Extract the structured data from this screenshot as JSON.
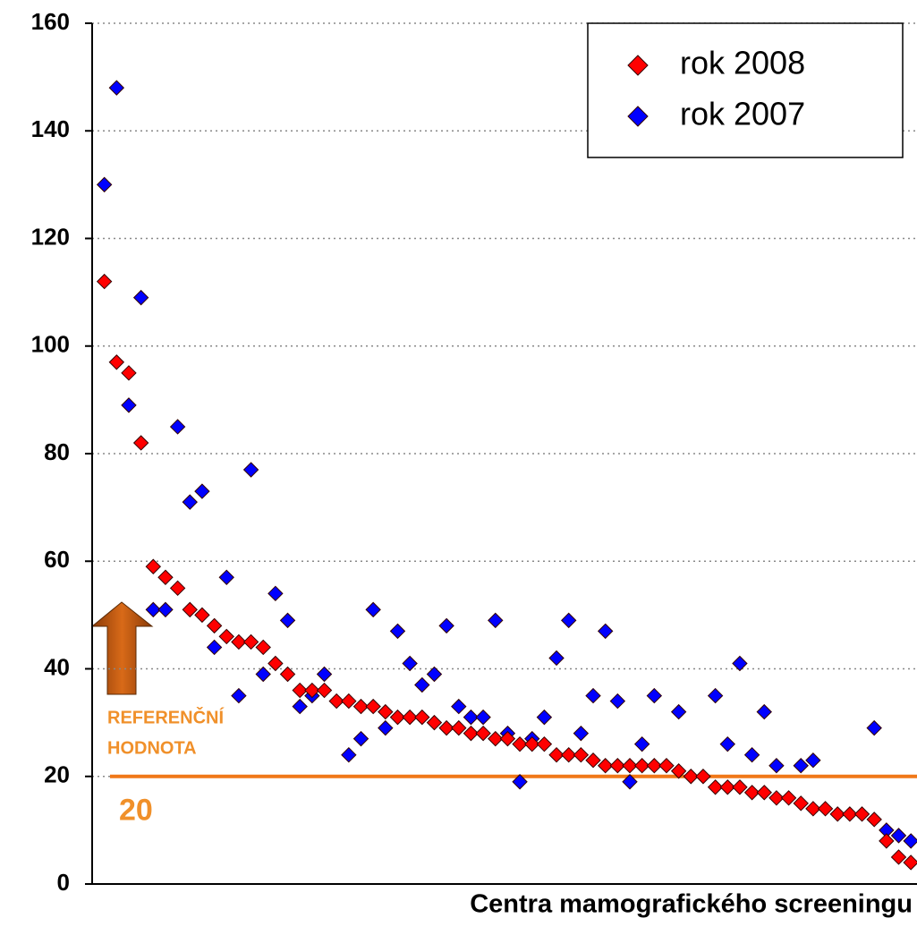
{
  "chart_data": {
    "type": "scatter",
    "xlabel": "Centra mamografického screeningu",
    "xlim": [
      0,
      67.5
    ],
    "ylim": [
      0,
      160
    ],
    "yticks": [
      0,
      20,
      40,
      60,
      80,
      100,
      120,
      140,
      160
    ],
    "grid": true,
    "legend": "upper right",
    "reference_value": 20,
    "reference_color": "#f07818",
    "annotation": [
      "REFERENČNÍ",
      "HODNOTA"
    ],
    "series": [
      {
        "name": "rok 2008",
        "color": "#ff0000",
        "x": [
          1,
          2,
          3,
          4,
          5,
          6,
          7,
          8,
          9,
          10,
          11,
          12,
          13,
          14,
          15,
          16,
          17,
          18,
          19,
          20,
          21,
          22,
          23,
          24,
          25,
          26,
          27,
          28,
          29,
          30,
          31,
          32,
          33,
          34,
          35,
          36,
          37,
          38,
          39,
          40,
          41,
          42,
          43,
          44,
          45,
          46,
          47,
          48,
          49,
          50,
          51,
          52,
          53,
          54,
          55,
          56,
          57,
          58,
          59,
          60,
          61,
          62,
          63,
          64,
          65,
          66,
          67
        ],
        "values": [
          112,
          97,
          95,
          82,
          59,
          57,
          55,
          51,
          50,
          48,
          46,
          45,
          45,
          44,
          41,
          39,
          36,
          36,
          36,
          34,
          34,
          33,
          33,
          32,
          31,
          31,
          31,
          30,
          29,
          29,
          28,
          28,
          27,
          27,
          26,
          26,
          26,
          24,
          24,
          24,
          23,
          22,
          22,
          22,
          22,
          22,
          22,
          21,
          20,
          20,
          18,
          18,
          18,
          17,
          17,
          16,
          16,
          15,
          14,
          14,
          13,
          13,
          13,
          12,
          8,
          5,
          4
        ]
      },
      {
        "name": "rok 2007",
        "color": "#0000ff",
        "x": [
          1,
          2,
          3,
          4,
          5,
          6,
          7,
          8,
          9,
          10,
          11,
          12,
          13,
          14,
          15,
          16,
          17,
          18,
          19,
          21,
          22,
          23,
          24,
          25,
          26,
          27,
          28,
          29,
          30,
          31,
          32,
          33,
          34,
          35,
          36,
          37,
          38,
          39,
          40,
          41,
          42,
          43,
          44,
          45,
          46,
          48,
          51,
          52,
          53,
          54,
          55,
          56,
          58,
          59,
          64,
          65,
          66,
          67
        ],
        "values": [
          130,
          148,
          89,
          109,
          51,
          51,
          85,
          71,
          73,
          44,
          57,
          35,
          77,
          39,
          54,
          49,
          33,
          35,
          39,
          24,
          27,
          51,
          29,
          47,
          41,
          37,
          39,
          48,
          33,
          31,
          31,
          49,
          28,
          19,
          27,
          31,
          42,
          49,
          28,
          35,
          47,
          34,
          19,
          26,
          35,
          32,
          35,
          26,
          41,
          24,
          32,
          22,
          22,
          23,
          29,
          10,
          9,
          8
        ]
      }
    ]
  }
}
